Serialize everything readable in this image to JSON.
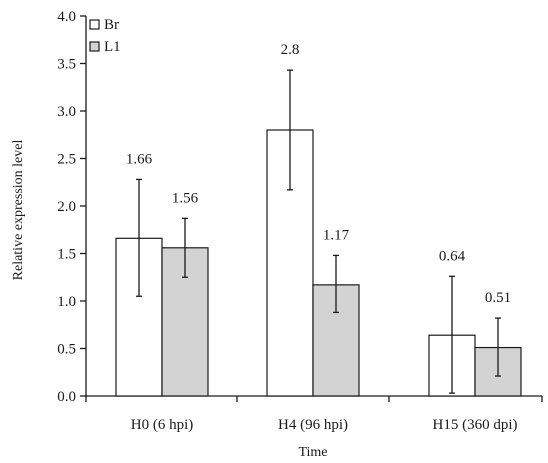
{
  "chart_data": {
    "type": "bar",
    "xlabel": "Time",
    "ylabel": "Relative expression level",
    "categories": [
      "H0 (6 hpi)",
      "H4 (96 hpi)",
      "H15 (360 dpi)"
    ],
    "series": [
      {
        "name": "Br",
        "values": [
          1.66,
          2.8,
          0.64
        ],
        "value_labels": [
          "1.66",
          "2.8",
          "0.64"
        ],
        "error_low": [
          1.05,
          2.17,
          0.03
        ],
        "error_high": [
          2.28,
          3.43,
          1.26
        ],
        "color": "#ffffff"
      },
      {
        "name": "L1",
        "values": [
          1.56,
          1.17,
          0.51
        ],
        "value_labels": [
          "1.56",
          "1.17",
          "0.51"
        ],
        "error_low": [
          1.25,
          0.88,
          0.21
        ],
        "error_high": [
          1.87,
          1.48,
          0.82
        ],
        "color": "#d3d3d3"
      }
    ],
    "ylim": [
      0,
      4.0
    ],
    "yticks": [
      0.0,
      0.5,
      1.0,
      1.5,
      2.0,
      2.5,
      3.0,
      3.5,
      4.0
    ],
    "ytick_labels": [
      "0.0",
      "0.5",
      "1.0",
      "1.5",
      "2.0",
      "2.5",
      "3.0",
      "3.5",
      "4.0"
    ],
    "legend_position": "top-left",
    "grid": false
  }
}
